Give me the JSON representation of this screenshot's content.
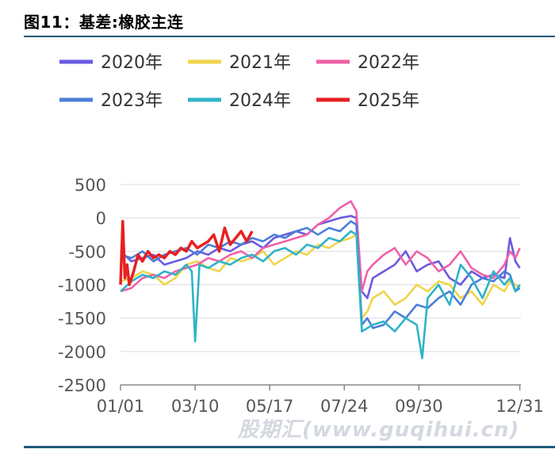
{
  "figure": {
    "title": "图11：基差:橡胶主连",
    "watermark": "股期汇(www.guqihui.cn)"
  },
  "chart_data": {
    "type": "line",
    "title": "",
    "xlabel": "",
    "ylabel": "",
    "ylim": [
      -2500,
      500
    ],
    "yticks": [
      500,
      0,
      -500,
      -1000,
      -1500,
      -2000,
      -2500
    ],
    "xticks": [
      "01/01",
      "03/10",
      "05/17",
      "07/24",
      "09/30",
      "12/31"
    ],
    "xtick_days": [
      0,
      68,
      136,
      204,
      272,
      364
    ],
    "xrange_days": [
      0,
      365
    ],
    "grid": "horizontal",
    "legend_position": "top",
    "series": [
      {
        "name": "2020年",
        "color": "#6a5ae0",
        "x": [
          0,
          10,
          20,
          30,
          40,
          50,
          60,
          70,
          80,
          90,
          100,
          110,
          120,
          130,
          140,
          150,
          160,
          170,
          180,
          190,
          200,
          210,
          215,
          220,
          225,
          230,
          240,
          250,
          260,
          270,
          280,
          290,
          300,
          310,
          320,
          330,
          340,
          350,
          355,
          360,
          364
        ],
        "y": [
          -500,
          -650,
          -600,
          -550,
          -700,
          -650,
          -600,
          -500,
          -550,
          -450,
          -500,
          -400,
          -350,
          -450,
          -300,
          -250,
          -200,
          -250,
          -100,
          -50,
          0,
          30,
          0,
          -1100,
          -1200,
          -900,
          -800,
          -700,
          -500,
          -800,
          -700,
          -650,
          -900,
          -1000,
          -800,
          -900,
          -850,
          -900,
          -300,
          -650,
          -750
        ]
      },
      {
        "name": "2021年",
        "color": "#f0d44a",
        "x": [
          0,
          10,
          20,
          30,
          40,
          50,
          60,
          70,
          80,
          90,
          100,
          110,
          120,
          130,
          140,
          150,
          160,
          170,
          180,
          190,
          200,
          210,
          215,
          220,
          225,
          230,
          240,
          250,
          260,
          270,
          280,
          290,
          300,
          310,
          320,
          330,
          340,
          350,
          355,
          360,
          364
        ],
        "y": [
          -950,
          -900,
          -800,
          -850,
          -1000,
          -900,
          -700,
          -650,
          -750,
          -800,
          -600,
          -650,
          -600,
          -500,
          -700,
          -600,
          -500,
          -550,
          -400,
          -450,
          -350,
          -300,
          -250,
          -1500,
          -1400,
          -1200,
          -1100,
          -1300,
          -1200,
          -1000,
          -1100,
          -950,
          -1000,
          -1200,
          -1100,
          -1300,
          -1000,
          -1100,
          -950,
          -1000,
          -1050
        ]
      },
      {
        "name": "2022年",
        "color": "#f060a8",
        "x": [
          0,
          10,
          20,
          30,
          40,
          50,
          60,
          70,
          80,
          90,
          100,
          110,
          120,
          130,
          140,
          150,
          160,
          170,
          180,
          190,
          200,
          210,
          215,
          220,
          225,
          230,
          240,
          250,
          260,
          270,
          280,
          290,
          300,
          310,
          320,
          330,
          340,
          350,
          355,
          360,
          364
        ],
        "y": [
          -1100,
          -1050,
          -900,
          -850,
          -900,
          -800,
          -750,
          -700,
          -600,
          -650,
          -550,
          -500,
          -600,
          -450,
          -400,
          -350,
          -300,
          -250,
          -100,
          0,
          150,
          250,
          100,
          -1100,
          -800,
          -700,
          -550,
          -450,
          -700,
          -500,
          -600,
          -800,
          -700,
          -500,
          -750,
          -850,
          -900,
          -700,
          -500,
          -600,
          -450
        ]
      },
      {
        "name": "2023年",
        "color": "#4a7fd8",
        "x": [
          0,
          10,
          20,
          30,
          40,
          50,
          60,
          70,
          80,
          90,
          100,
          110,
          120,
          130,
          140,
          150,
          160,
          170,
          180,
          190,
          200,
          210,
          215,
          220,
          225,
          230,
          240,
          250,
          260,
          270,
          280,
          290,
          300,
          310,
          320,
          330,
          340,
          350,
          355,
          360,
          364
        ],
        "y": [
          -550,
          -600,
          -500,
          -650,
          -550,
          -500,
          -450,
          -550,
          -400,
          -450,
          -350,
          -400,
          -300,
          -350,
          -250,
          -300,
          -200,
          -150,
          -250,
          -150,
          -200,
          -50,
          -100,
          -1600,
          -1500,
          -1650,
          -1600,
          -1400,
          -1500,
          -1300,
          -1350,
          -1200,
          -1100,
          -1300,
          -1000,
          -900,
          -950,
          -800,
          -850,
          -1100,
          -1050
        ]
      },
      {
        "name": "2024年",
        "color": "#2fb3c8",
        "x": [
          0,
          10,
          20,
          30,
          40,
          50,
          60,
          65,
          68,
          72,
          80,
          90,
          100,
          110,
          120,
          130,
          140,
          150,
          160,
          170,
          180,
          190,
          200,
          210,
          215,
          220,
          225,
          230,
          240,
          250,
          260,
          270,
          275,
          280,
          290,
          300,
          310,
          320,
          330,
          340,
          350,
          355,
          360,
          364
        ],
        "y": [
          -1100,
          -950,
          -850,
          -900,
          -800,
          -850,
          -700,
          -800,
          -1850,
          -700,
          -750,
          -650,
          -700,
          -600,
          -550,
          -650,
          -500,
          -450,
          -550,
          -400,
          -450,
          -300,
          -350,
          -200,
          -250,
          -1700,
          -1650,
          -1600,
          -1550,
          -1700,
          -1500,
          -1600,
          -2100,
          -1200,
          -1000,
          -1300,
          -700,
          -900,
          -1200,
          -800,
          -1000,
          -900,
          -1100,
          -1000
        ]
      },
      {
        "name": "2025年",
        "color": "#e82020",
        "x": [
          0,
          2,
          4,
          6,
          8,
          12,
          16,
          20,
          25,
          30,
          35,
          40,
          45,
          50,
          55,
          60,
          65,
          70,
          75,
          80,
          85,
          90,
          95,
          100,
          105,
          110,
          115,
          120
        ],
        "y": [
          -1000,
          -50,
          -900,
          -700,
          -1000,
          -800,
          -550,
          -650,
          -500,
          -600,
          -550,
          -600,
          -500,
          -550,
          -450,
          -500,
          -350,
          -450,
          -400,
          -350,
          -250,
          -500,
          -150,
          -400,
          -300,
          -200,
          -350,
          -200
        ]
      }
    ]
  }
}
